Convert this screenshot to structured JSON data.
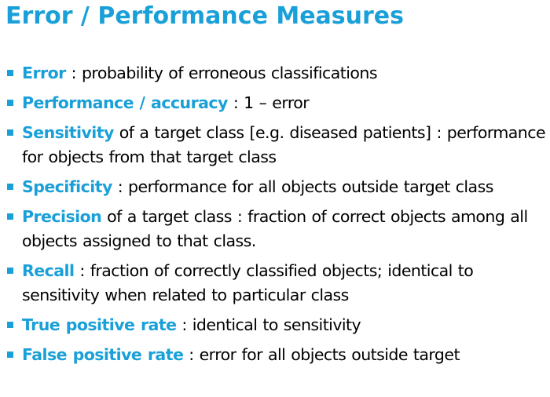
{
  "title": "Error / Performance Measures",
  "colors": {
    "accent": "#1aa0d8",
    "text": "#000000",
    "background": "#ffffff"
  },
  "bullets": [
    {
      "term": "Error",
      "text": " : probability of erroneous classifications"
    },
    {
      "term": "Performance / accuracy",
      "text": " : 1 – error"
    },
    {
      "term": "Sensitivity",
      "text": " of a target class [e.g. diseased patients] : performance for objects from that target class"
    },
    {
      "term": "Specificity",
      "text": " :  performance for all objects outside target class"
    },
    {
      "term": "Precision",
      "text": " of a target class : fraction of correct objects among all objects assigned to that class."
    },
    {
      "term": "Recall",
      "text": " : fraction of correctly classified objects; identical to sensitivity when related to particular class"
    },
    {
      "term": "True positive rate",
      "text": " : identical to sensitivity"
    },
    {
      "term": "False positive rate",
      "text": " : error for all objects outside target"
    }
  ]
}
